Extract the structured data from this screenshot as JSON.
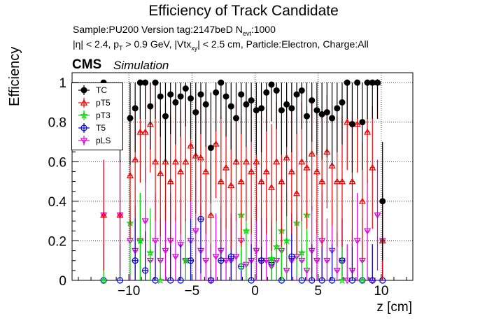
{
  "header": {
    "title": "Efficiency of Track Candidate",
    "sample": "Sample:PU200   Version tag:2147beD  N",
    "nevt_sub": "evt",
    "nevt_val": ":1000",
    "cuts_1": "|η| < 2.4, p",
    "cuts_pt_sub": "T",
    "cuts_2": " > 0.9 GeV, |Vtx",
    "cuts_vtx_sub": "xy",
    "cuts_3": "| < 2.5 cm, Particle:Electron, Charge:All",
    "cms": "CMS",
    "simulation": "Simulation"
  },
  "chart_data": {
    "type": "scatter",
    "xlabel": "z [cm]",
    "ylabel": "Efficiency",
    "xlim": [
      -14.5,
      12.5
    ],
    "ylim": [
      0,
      1.05
    ],
    "xticks": [
      -10,
      -5,
      0,
      5,
      10
    ],
    "yticks": [
      0,
      0.2,
      0.4,
      0.6,
      0.8,
      1
    ],
    "grid": true,
    "legend_position": "top-left",
    "series": [
      {
        "name": "TC",
        "color": "#000000",
        "marker": "filled-circle",
        "x": [
          -12,
          -10.7,
          -9.9,
          -9.5,
          -9.1,
          -8.7,
          -8.3,
          -7.9,
          -7.5,
          -7.1,
          -6.7,
          -6.3,
          -5.9,
          -5.5,
          -5.1,
          -4.7,
          -4.3,
          -3.9,
          -3.5,
          -3.1,
          -2.7,
          -2.3,
          -1.9,
          -1.5,
          -1.1,
          -0.7,
          -0.3,
          0.1,
          0.5,
          0.9,
          1.3,
          1.7,
          2.1,
          2.5,
          2.9,
          3.3,
          3.7,
          4.1,
          4.5,
          4.9,
          5.3,
          5.7,
          6.1,
          6.5,
          6.9,
          7.3,
          7.7,
          8.1,
          8.5,
          8.9,
          9.3,
          9.7,
          10.1
        ],
        "y": [
          1.0,
          0.83,
          0.82,
          0.87,
          1.0,
          1.0,
          0.88,
          1.0,
          0.93,
          0.83,
          0.94,
          0.9,
          0.93,
          0.97,
          0.92,
          0.85,
          0.94,
          0.89,
          0.67,
          0.95,
          1.0,
          0.93,
          0.88,
          0.82,
          0.94,
          0.89,
          0.91,
          0.86,
          0.87,
          0.95,
          0.99,
          0.96,
          0.86,
          0.89,
          0.87,
          0.94,
          0.96,
          0.83,
          0.91,
          0.86,
          0.84,
          0.85,
          0.82,
          0.87,
          0.9,
          1.0,
          0.79,
          1.0,
          0.8,
          1.0,
          1.0,
          1.0,
          0.4
        ]
      },
      {
        "name": "pT5",
        "color": "#ee0000",
        "marker": "open-triangle",
        "x": [
          -12,
          -10.7,
          -9.9,
          -9.5,
          -9.1,
          -8.7,
          -8.3,
          -7.9,
          -7.5,
          -7.1,
          -6.7,
          -6.3,
          -5.9,
          -5.5,
          -5.1,
          -4.7,
          -4.3,
          -3.9,
          -3.5,
          -3.1,
          -2.7,
          -2.3,
          -1.9,
          -1.5,
          -1.1,
          -0.7,
          -0.3,
          0.1,
          0.5,
          0.9,
          1.3,
          1.7,
          2.1,
          2.5,
          2.9,
          3.3,
          3.7,
          4.1,
          4.5,
          4.9,
          5.3,
          5.7,
          6.1,
          6.5,
          6.9,
          7.3,
          7.7,
          8.1,
          8.5,
          8.9,
          9.3,
          9.7,
          10.1
        ],
        "y": [
          0.33,
          0.33,
          0.53,
          0.61,
          0.75,
          0.75,
          0.79,
          0.6,
          0.54,
          0.6,
          0.5,
          0.6,
          0.55,
          0.6,
          0.68,
          0.63,
          0.62,
          0.55,
          0.33,
          0.69,
          0.5,
          0.57,
          0.48,
          0.6,
          0.5,
          0.6,
          0.55,
          0.6,
          0.5,
          0.55,
          0.47,
          0.6,
          0.5,
          0.62,
          0.55,
          0.44,
          0.6,
          0.57,
          0.64,
          0.55,
          0.5,
          0.65,
          0.58,
          0.5,
          0.5,
          0.8,
          0.5,
          0.79,
          0.4,
          0.75,
          0.57,
          1.0,
          0.2
        ]
      },
      {
        "name": "pT3",
        "color": "#00dd00",
        "marker": "open-star",
        "x": [
          -12,
          -9.9,
          -9.1,
          -8.3,
          -7.5,
          -5.5,
          -1.1,
          -0.7,
          1.3,
          1.7,
          2.1,
          2.5,
          3.3,
          3.7,
          4.1,
          6.9,
          8.5
        ],
        "y": [
          0.0,
          0.29,
          0.2,
          0.14,
          0.0,
          0.1,
          0.33,
          0.25,
          0.11,
          0.17,
          0.25,
          0.2,
          0.29,
          0.14,
          0.33,
          0.0,
          0.0
        ]
      },
      {
        "name": "T5",
        "color": "#0000cc",
        "marker": "open-circle",
        "x": [
          -12,
          -10.7,
          -9.5,
          -8.7,
          -7.9,
          -6.7,
          -5.9,
          -5.1,
          -4.3,
          -3.5,
          -2.7,
          -1.9,
          -1.1,
          -0.3,
          0.5,
          1.3,
          2.1,
          2.9,
          3.7,
          4.5,
          5.3,
          6.1,
          6.9,
          7.7,
          8.5,
          9.3,
          10.1
        ],
        "y": [
          0.0,
          0.0,
          0.1,
          0.05,
          0.0,
          0.0,
          0.0,
          0.1,
          0.31,
          0.0,
          0.1,
          0.12,
          0.07,
          0.0,
          0.1,
          0.09,
          0.0,
          0.12,
          0.0,
          0.0,
          0.0,
          0.0,
          0.1,
          0.0,
          0.0,
          0.0,
          0.0
        ]
      },
      {
        "name": "pLS",
        "color": "#dd00dd",
        "marker": "open-triangle-down",
        "x": [
          -12,
          -10.7,
          -9.9,
          -9.5,
          -9.1,
          -8.7,
          -8.3,
          -7.9,
          -7.5,
          -7.1,
          -6.7,
          -6.3,
          -5.9,
          -5.5,
          -5.1,
          -4.7,
          -4.3,
          -3.9,
          -3.5,
          -3.1,
          -2.7,
          -2.3,
          -1.9,
          -1.5,
          -1.1,
          -0.7,
          -0.3,
          0.1,
          0.5,
          0.9,
          1.3,
          1.7,
          2.1,
          2.5,
          2.9,
          3.3,
          3.7,
          4.1,
          4.5,
          4.9,
          5.3,
          5.7,
          6.1,
          6.5,
          6.9,
          7.3,
          7.7,
          8.1,
          8.5,
          8.9,
          9.3,
          9.7,
          10.1
        ],
        "y": [
          0.33,
          0.33,
          0.2,
          0.15,
          0.2,
          0.3,
          0.1,
          0.2,
          0.1,
          0.15,
          0.2,
          0.12,
          0.18,
          0.1,
          0.2,
          0.25,
          0.15,
          0.1,
          0.0,
          0.12,
          0.15,
          0.1,
          0.1,
          0.12,
          0.2,
          0.08,
          0.1,
          0.15,
          0.1,
          0.1,
          0.07,
          0.1,
          0.15,
          0.05,
          0.1,
          0.12,
          0.1,
          0.05,
          0.15,
          0.1,
          0.2,
          0.1,
          0.15,
          0.05,
          0.1,
          0.0,
          0.05,
          0.2,
          0.1,
          0.25,
          0.0,
          0.33,
          0.2
        ]
      }
    ]
  }
}
